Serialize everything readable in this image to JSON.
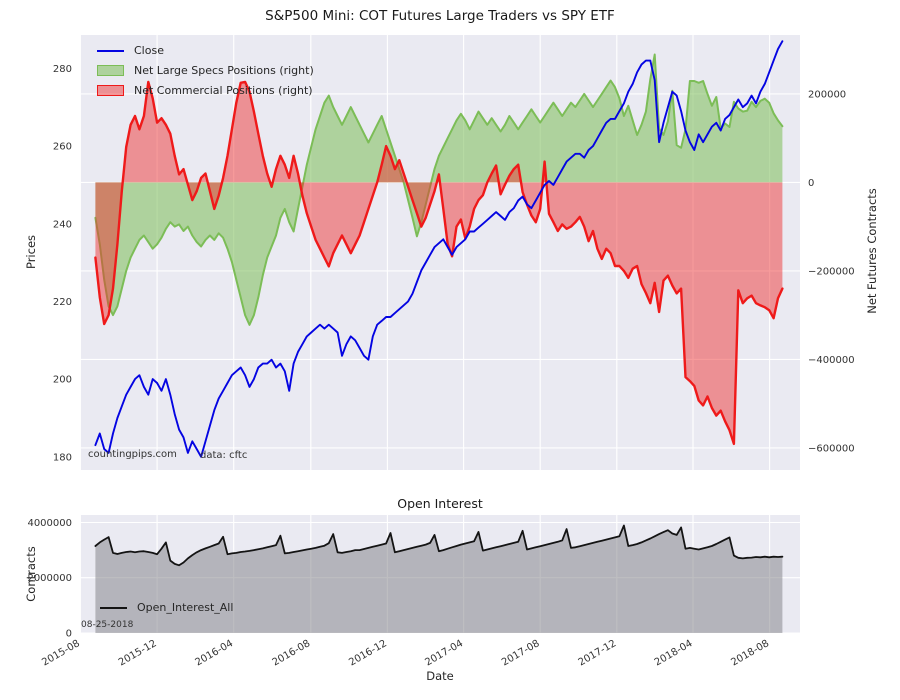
{
  "title": "S&P500 Mini: COT Futures Large Traders vs SPY ETF",
  "watermark": "countingpips.com",
  "source_note": "data: cftc",
  "x_axis_label": "Date",
  "colors": {
    "plot_background": "#eaeaf2",
    "grid": "#ffffff",
    "close_line": "#0404e2",
    "specs_line": "#7cbd57",
    "specs_fill": "rgba(124,189,87,0.55)",
    "commercial_line": "#ef1a1a",
    "commercial_fill": "rgba(239,47,47,0.48)",
    "open_interest_line": "#141414",
    "open_interest_fill": "rgba(125,125,132,0.5)"
  },
  "top_chart": {
    "left_axis_label": "Prices",
    "right_axis_label": "Net Futures Contracts",
    "legend": [
      {
        "label": "Close",
        "swatch": "blue-line"
      },
      {
        "label": "Net Large Specs Positions (right)",
        "swatch": "green-patch"
      },
      {
        "label": "Net Commercial Positions (right)",
        "swatch": "red-patch"
      }
    ]
  },
  "bottom_chart": {
    "title": "Open Interest",
    "left_axis_label": "Contracts",
    "legend": [
      {
        "label": "Open_Interest_All",
        "swatch": "black-line"
      }
    ],
    "date_note": "08-25-2018"
  },
  "chart_data": [
    {
      "type": "line",
      "name": "cot-vs-spy",
      "title": "S&P500 Mini: COT Futures Large Traders vs SPY ETF",
      "x_unit": "weeks since 2015-08-25",
      "x_domain": [
        -3.5,
        160
      ],
      "x_ticks": {
        "labels": [
          "2015-08",
          "2015-12",
          "2016-04",
          "2016-08",
          "2016-12",
          "2017-04",
          "2017-08",
          "2017-12",
          "2018-04",
          "2018-08"
        ],
        "positions": [
          -3.4,
          14.0,
          31.4,
          48.9,
          66.3,
          83.6,
          101.0,
          118.4,
          135.7,
          153.1
        ]
      },
      "grid": "right",
      "show_x_labels": false,
      "left_axis": {
        "label": "Prices",
        "ticks": [
          180,
          200,
          220,
          240,
          260,
          280
        ],
        "ylim": [
          176.6,
          288.6
        ]
      },
      "right_axis": {
        "label": "Net Futures Contracts",
        "ticks": [
          200000,
          0,
          -200000,
          -400000,
          -600000
        ],
        "ylim": [
          -650000,
          333000
        ]
      },
      "series": [
        {
          "id": "specs",
          "name": "Net Large Specs Positions (right)",
          "axis": "right",
          "style": "area",
          "color": "#7cbd57",
          "fill": "rgba(124,189,87,0.55)",
          "baseline": 0,
          "width": 2,
          "values": [
            -80000,
            -140000,
            -220000,
            -280000,
            -300000,
            -280000,
            -240000,
            -200000,
            -170000,
            -150000,
            -130000,
            -120000,
            -135000,
            -150000,
            -140000,
            -125000,
            -105000,
            -90000,
            -100000,
            -95000,
            -110000,
            -100000,
            -120000,
            -135000,
            -145000,
            -130000,
            -120000,
            -130000,
            -115000,
            -125000,
            -150000,
            -180000,
            -220000,
            -260000,
            -300000,
            -322000,
            -300000,
            -260000,
            -210000,
            -170000,
            -145000,
            -120000,
            -80000,
            -60000,
            -90000,
            -111000,
            -60000,
            -10000,
            40000,
            80000,
            120000,
            150000,
            180000,
            196000,
            170000,
            150000,
            130000,
            150000,
            170000,
            150000,
            130000,
            110000,
            90000,
            110000,
            130000,
            150000,
            120000,
            90000,
            60000,
            30000,
            0,
            -40000,
            -80000,
            -122000,
            -90000,
            -50000,
            -10000,
            30000,
            60000,
            80000,
            100000,
            120000,
            140000,
            155000,
            140000,
            120000,
            140000,
            160000,
            145000,
            130000,
            145000,
            130000,
            115000,
            130000,
            150000,
            135000,
            120000,
            135000,
            150000,
            165000,
            150000,
            135000,
            150000,
            165000,
            180000,
            165000,
            150000,
            165000,
            180000,
            170000,
            185000,
            200000,
            185000,
            170000,
            185000,
            200000,
            215000,
            230000,
            215000,
            190000,
            150000,
            173000,
            140000,
            107000,
            130000,
            160000,
            233000,
            289000,
            122000,
            107000,
            138000,
            207000,
            84000,
            78000,
            120000,
            229000,
            229000,
            225000,
            229000,
            200000,
            173000,
            193000,
            122000,
            133000,
            125000,
            182000,
            167000,
            160000,
            162000,
            182000,
            170000,
            184000,
            189000,
            180000,
            156000,
            140000,
            127000
          ]
        },
        {
          "id": "commercials",
          "name": "Net Commercial Positions (right)",
          "axis": "right",
          "style": "area",
          "color": "#ef1a1a",
          "fill": "rgba(239,47,47,0.48)",
          "baseline": 0,
          "width": 2.4,
          "values": [
            -170000,
            -260000,
            -320000,
            -300000,
            -240000,
            -140000,
            -20000,
            80000,
            130000,
            150000,
            120000,
            150000,
            227000,
            190000,
            135000,
            145000,
            130000,
            110000,
            60000,
            18000,
            30000,
            -5000,
            -40000,
            -20000,
            10000,
            20000,
            -20000,
            -60000,
            -30000,
            10000,
            60000,
            120000,
            180000,
            225000,
            227000,
            205000,
            160000,
            110000,
            60000,
            20000,
            -10000,
            30000,
            60000,
            40000,
            10000,
            60000,
            20000,
            -30000,
            -70000,
            -100000,
            -130000,
            -150000,
            -170000,
            -190000,
            -160000,
            -140000,
            -120000,
            -140000,
            -160000,
            -140000,
            -120000,
            -90000,
            -60000,
            -30000,
            0,
            40000,
            82000,
            60000,
            30000,
            50000,
            20000,
            -10000,
            -40000,
            -70000,
            -100000,
            -80000,
            -50000,
            -20000,
            18000,
            -60000,
            -140000,
            -167000,
            -100000,
            -84000,
            -127000,
            -100000,
            -60000,
            -40000,
            -29000,
            0,
            20000,
            38000,
            -27000,
            -5000,
            15000,
            30000,
            40000,
            -22000,
            -50000,
            -75000,
            -90000,
            -60000,
            47000,
            -71000,
            -90000,
            -110000,
            -95000,
            -105000,
            -100000,
            -90000,
            -78000,
            -100000,
            -133000,
            -110000,
            -150000,
            -173000,
            -150000,
            -160000,
            -189000,
            -189000,
            -200000,
            -216000,
            -195000,
            -189000,
            -230000,
            -250000,
            -273000,
            -227000,
            -293000,
            -222000,
            -211000,
            -233000,
            -251000,
            -240000,
            -440000,
            -449000,
            -460000,
            -493000,
            -504000,
            -484000,
            -510000,
            -527000,
            -516000,
            -540000,
            -560000,
            -591000,
            -244000,
            -273000,
            -262000,
            -256000,
            -273000,
            -278000,
            -282000,
            -289000,
            -307000,
            -262000,
            -240000
          ]
        },
        {
          "id": "close",
          "name": "Close",
          "axis": "left",
          "style": "line",
          "color": "#0404e2",
          "width": 1.9,
          "values": [
            183,
            186,
            182,
            181,
            186,
            190,
            193,
            196,
            198,
            200,
            201,
            198,
            196,
            200,
            199,
            197,
            200,
            196,
            191,
            187,
            185,
            181,
            184,
            182,
            180,
            184,
            188,
            192,
            195,
            197,
            199,
            201,
            202,
            203,
            201,
            198,
            200,
            203,
            204,
            204,
            205,
            203,
            204,
            202,
            197,
            204,
            207,
            209,
            211,
            212,
            213,
            214,
            213,
            214,
            213,
            212,
            206,
            209,
            211,
            210,
            208,
            206,
            205,
            211,
            214,
            215,
            216,
            216,
            217,
            218,
            219,
            220,
            222,
            225,
            228,
            230,
            232,
            234,
            235,
            236,
            234,
            232,
            234,
            235,
            236,
            238,
            238,
            239,
            240,
            241,
            242,
            243,
            242,
            241,
            243,
            244,
            246,
            247,
            245,
            244,
            246,
            248,
            250,
            251,
            250,
            252,
            254,
            256,
            257,
            258,
            258,
            257,
            259,
            260,
            262,
            264,
            266,
            267,
            267,
            269,
            271,
            274,
            276,
            279,
            281,
            282,
            282,
            277,
            261,
            266,
            270,
            274,
            273,
            269,
            264,
            261,
            259,
            263,
            261,
            263,
            265,
            266,
            264,
            267,
            268,
            270,
            272,
            270,
            271,
            273,
            271,
            274,
            276,
            279,
            282,
            285,
            287
          ]
        }
      ]
    },
    {
      "type": "area",
      "name": "open-interest",
      "title": "Open Interest",
      "x_unit": "weeks since 2015-08-25",
      "x_domain": [
        -3.5,
        160
      ],
      "x_ticks": {
        "labels": [
          "2015-08",
          "2015-12",
          "2016-04",
          "2016-08",
          "2016-12",
          "2017-04",
          "2017-08",
          "2017-12",
          "2018-04",
          "2018-08"
        ],
        "positions": [
          -3.4,
          14.0,
          31.4,
          48.9,
          66.3,
          83.6,
          101.0,
          118.4,
          135.7,
          153.1
        ]
      },
      "grid": "left",
      "show_x_labels": true,
      "xlabel": "Date",
      "left_axis": {
        "label": "Contracts",
        "ticks": [
          0,
          2000000,
          4000000
        ],
        "ylim": [
          0,
          4270000
        ]
      },
      "series": [
        {
          "id": "open-interest-all",
          "name": "Open_Interest_All",
          "axis": "left",
          "style": "area",
          "color": "#141414",
          "fill": "rgba(125,125,132,0.5)",
          "baseline": 0,
          "width": 1.8,
          "values": [
            3150000,
            3280000,
            3380000,
            3470000,
            2900000,
            2860000,
            2900000,
            2930000,
            2950000,
            2920000,
            2950000,
            2960000,
            2930000,
            2900000,
            2850000,
            3050000,
            3280000,
            2620000,
            2500000,
            2450000,
            2550000,
            2700000,
            2820000,
            2920000,
            3000000,
            3060000,
            3120000,
            3180000,
            3240000,
            3480000,
            2850000,
            2880000,
            2900000,
            2930000,
            2950000,
            2970000,
            3000000,
            3030000,
            3060000,
            3100000,
            3140000,
            3180000,
            3520000,
            2880000,
            2900000,
            2930000,
            2960000,
            2990000,
            3020000,
            3050000,
            3080000,
            3120000,
            3160000,
            3250000,
            3580000,
            2920000,
            2900000,
            2930000,
            2960000,
            3000000,
            3000000,
            3040000,
            3080000,
            3120000,
            3160000,
            3200000,
            3240000,
            3620000,
            2920000,
            2960000,
            3000000,
            3040000,
            3080000,
            3120000,
            3160000,
            3200000,
            3260000,
            3550000,
            2960000,
            3000000,
            3050000,
            3100000,
            3150000,
            3200000,
            3240000,
            3280000,
            3320000,
            3660000,
            2980000,
            3020000,
            3060000,
            3100000,
            3140000,
            3180000,
            3220000,
            3260000,
            3300000,
            3700000,
            3020000,
            3060000,
            3100000,
            3140000,
            3180000,
            3220000,
            3260000,
            3300000,
            3350000,
            3760000,
            3080000,
            3100000,
            3140000,
            3180000,
            3220000,
            3260000,
            3300000,
            3340000,
            3380000,
            3420000,
            3460000,
            3500000,
            3890000,
            3150000,
            3180000,
            3220000,
            3280000,
            3350000,
            3420000,
            3500000,
            3580000,
            3650000,
            3720000,
            3600000,
            3550000,
            3820000,
            3050000,
            3080000,
            3050000,
            3020000,
            3060000,
            3100000,
            3150000,
            3220000,
            3300000,
            3380000,
            3460000,
            2800000,
            2720000,
            2700000,
            2720000,
            2730000,
            2750000,
            2740000,
            2760000,
            2740000,
            2760000,
            2750000,
            2760000
          ]
        }
      ]
    }
  ]
}
